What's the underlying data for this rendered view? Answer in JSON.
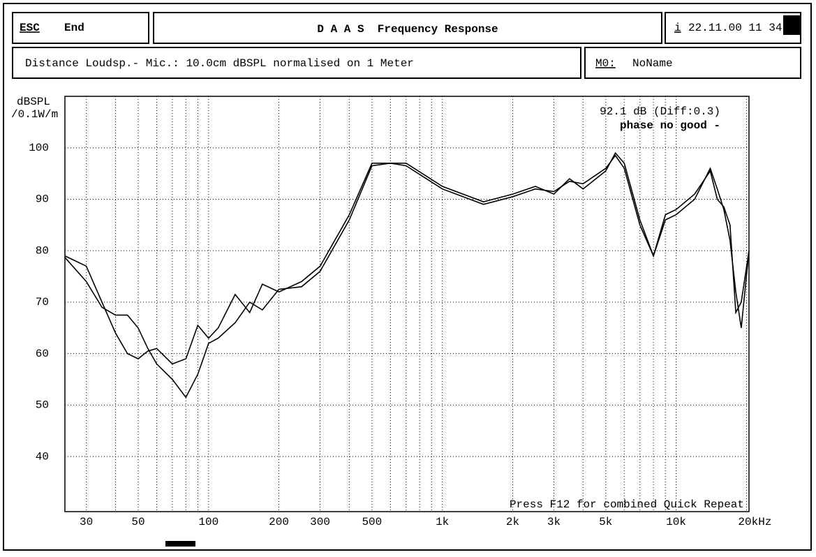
{
  "header": {
    "esc": "ESC",
    "end": "End",
    "title": "D A A S  Frequency Response",
    "info_key": "i",
    "datetime": "22.11.00 11 34",
    "description": "Distance Loudsp.- Mic.: 10.0cm dBSPL normalised on 1 Meter",
    "memory_key": "M0:",
    "memory_name": "NoName"
  },
  "chart_data": {
    "type": "line",
    "y_label": "dBSPL",
    "y_label_unit": "/0.1W/m",
    "annotation_level": "92.1 dB (Diff:0.3)",
    "annotation_phase": "phase no good -",
    "footer_hint": "Press F12 for combined Quick Repeat",
    "log_x": true,
    "grid": true,
    "xlim": [
      24.3,
      20500
    ],
    "ylim": [
      29.3,
      110
    ],
    "xticks": [
      30,
      50,
      100,
      200,
      300,
      500,
      {
        "value": 1000,
        "label": "1k"
      },
      {
        "value": 2000,
        "label": "2k"
      },
      {
        "value": 3000,
        "label": "3k"
      },
      {
        "value": 5000,
        "label": "5k"
      },
      {
        "value": 10000,
        "label": "10k"
      },
      {
        "value": 20000,
        "label": "20kHz"
      }
    ],
    "x_minor_ticks": [
      40,
      60,
      70,
      80,
      90,
      400,
      600,
      700,
      800,
      900,
      4000,
      6000,
      7000,
      8000,
      9000
    ],
    "yticks": [
      40,
      50,
      60,
      70,
      80,
      90,
      100
    ],
    "x": [
      24.3,
      30,
      35,
      40,
      45,
      50,
      55,
      60,
      70,
      80,
      90,
      100,
      110,
      130,
      150,
      170,
      200,
      250,
      300,
      400,
      500,
      600,
      700,
      1000,
      1500,
      2000,
      2500,
      3000,
      3500,
      4000,
      5000,
      5500,
      6000,
      7000,
      8000,
      9000,
      10000,
      12000,
      14000,
      15000,
      16000,
      17000,
      18000,
      19000,
      20500
    ],
    "series": [
      {
        "color": "#000000",
        "values": [
          78.7,
          74,
          69,
          67.5,
          67.5,
          65,
          61,
          58,
          55,
          51.5,
          56,
          62,
          63,
          66,
          70,
          68.5,
          72.5,
          73,
          76,
          86,
          96.5,
          97,
          96.5,
          92,
          89,
          90.5,
          92,
          91.5,
          93.5,
          93,
          96,
          98.5,
          96,
          85,
          79,
          86,
          87,
          90,
          96,
          92,
          88,
          82,
          72,
          65,
          80
        ]
      },
      {
        "color": "#000000",
        "values": [
          79,
          77,
          70,
          64,
          60,
          59,
          60.5,
          61,
          58,
          59,
          65.5,
          63,
          65,
          71.5,
          68,
          73.5,
          72,
          74,
          77,
          87,
          97,
          97,
          97,
          92.5,
          89.5,
          91,
          92.5,
          91,
          94,
          92,
          95.5,
          99,
          97,
          86,
          79,
          87,
          88,
          91,
          95.5,
          90,
          88.5,
          85,
          68,
          70,
          80
        ]
      }
    ]
  }
}
